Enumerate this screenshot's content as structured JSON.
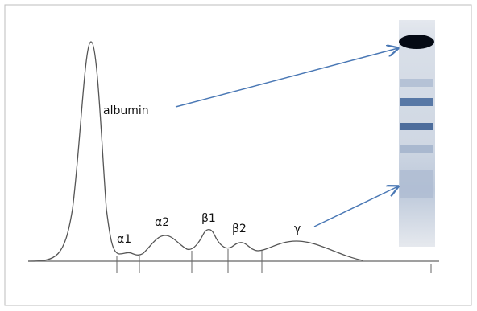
{
  "labels": {
    "albumin": "albumin",
    "alpha1": "α1",
    "alpha2": "α2",
    "beta1": "β1",
    "beta2": "β2",
    "gamma": "γ"
  }
}
